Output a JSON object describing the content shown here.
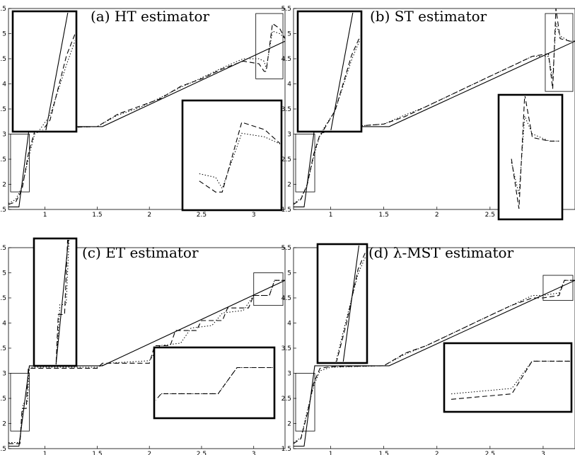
{
  "chart_data": [
    {
      "type": "line",
      "title": "(a) HT estimator",
      "xlim": [
        0.65,
        3.3
      ],
      "ylim": [
        1.5,
        5.5
      ],
      "xticks": [
        "1",
        "1.5",
        "2",
        "2.5",
        "3"
      ],
      "yticks": [
        "1.5",
        "2",
        "2.5",
        "3",
        "3.5",
        "4",
        "4.5",
        "5",
        "5.5"
      ],
      "series": [
        {
          "style": "solid",
          "x": [
            0.65,
            0.75,
            0.85,
            1.55,
            3.3
          ],
          "y": [
            1.55,
            1.55,
            3.15,
            3.15,
            4.85
          ]
        },
        {
          "style": "dashed",
          "x": [
            0.65,
            0.72,
            0.78,
            0.84,
            0.9,
            1.0,
            1.5,
            1.7,
            1.9,
            2.1,
            2.3,
            2.5,
            2.7,
            2.9,
            3.05,
            3.1,
            3.12,
            3.18,
            3.25,
            3.3
          ],
          "y": [
            1.6,
            1.65,
            1.9,
            2.6,
            3.05,
            3.12,
            3.15,
            3.4,
            3.55,
            3.7,
            3.95,
            4.1,
            4.3,
            4.45,
            4.4,
            4.25,
            4.25,
            5.2,
            5.1,
            4.9
          ]
        },
        {
          "style": "dotted",
          "x": [
            0.65,
            0.72,
            0.78,
            0.84,
            0.9,
            1.0,
            1.5,
            1.7,
            1.9,
            2.1,
            2.3,
            2.5,
            2.7,
            2.9,
            3.05,
            3.1,
            3.12,
            3.18,
            3.25,
            3.3
          ],
          "y": [
            1.62,
            1.7,
            1.95,
            2.5,
            3.0,
            3.12,
            3.15,
            3.38,
            3.52,
            3.72,
            3.93,
            4.12,
            4.32,
            4.5,
            4.5,
            4.45,
            4.3,
            5.05,
            5.0,
            4.9
          ]
        }
      ]
    },
    {
      "type": "line",
      "title": "(b) ST estimator",
      "xlim": [
        0.65,
        3.3
      ],
      "ylim": [
        1.5,
        5.5
      ],
      "xticks": [
        "1",
        "1.5",
        "2",
        "2.5",
        "3"
      ],
      "yticks": [
        "1.5",
        "2",
        "2.5",
        "3",
        "3.5",
        "4",
        "4.5",
        "5",
        "5.5"
      ],
      "series": [
        {
          "style": "solid",
          "x": [
            0.65,
            0.75,
            0.85,
            1.55,
            3.3
          ],
          "y": [
            1.55,
            1.55,
            3.15,
            3.15,
            4.85
          ]
        },
        {
          "style": "dashed",
          "x": [
            0.65,
            0.72,
            0.78,
            0.84,
            0.9,
            1.0,
            1.5,
            1.7,
            1.9,
            2.1,
            2.3,
            2.5,
            2.7,
            2.9,
            3.05,
            3.09,
            3.12,
            3.16,
            3.25,
            3.3
          ],
          "y": [
            1.6,
            1.7,
            2.0,
            2.6,
            3.0,
            3.12,
            3.2,
            3.35,
            3.55,
            3.75,
            3.95,
            4.15,
            4.35,
            4.55,
            4.6,
            3.9,
            5.5,
            4.9,
            4.85,
            4.85
          ]
        },
        {
          "style": "dotted",
          "x": [
            0.65,
            0.72,
            0.78,
            0.84,
            0.9,
            1.0,
            1.5,
            1.7,
            1.9,
            2.1,
            2.3,
            2.5,
            2.7,
            2.9,
            3.05,
            3.09,
            3.12,
            3.16,
            3.25,
            3.3
          ],
          "y": [
            1.62,
            1.72,
            2.0,
            2.55,
            2.98,
            3.12,
            3.2,
            3.38,
            3.55,
            3.75,
            3.95,
            4.15,
            4.35,
            4.55,
            4.55,
            4.1,
            5.2,
            4.95,
            4.85,
            4.85
          ]
        }
      ]
    },
    {
      "type": "line",
      "title": "(c) ET estimator",
      "xlim": [
        0.65,
        3.3
      ],
      "ylim": [
        1.5,
        5.5
      ],
      "xticks": [
        "1",
        "1.5",
        "2",
        "2.5",
        "3"
      ],
      "yticks": [
        "1.5",
        "2",
        "2.5",
        "3",
        "3.5",
        "4",
        "4.5",
        "5",
        "5.5"
      ],
      "series": [
        {
          "style": "solid",
          "x": [
            0.65,
            0.75,
            0.85,
            1.55,
            3.3
          ],
          "y": [
            1.55,
            1.55,
            3.15,
            3.15,
            4.85
          ]
        },
        {
          "style": "dashed",
          "x": [
            0.65,
            0.76,
            0.78,
            0.82,
            0.84,
            1.5,
            1.55,
            2.0,
            2.05,
            2.2,
            2.25,
            2.45,
            2.5,
            2.7,
            2.75,
            2.95,
            3.0,
            3.15,
            3.2,
            3.3
          ],
          "y": [
            1.6,
            1.6,
            2.3,
            2.3,
            3.1,
            3.1,
            3.2,
            3.2,
            3.55,
            3.55,
            3.85,
            3.85,
            4.05,
            4.05,
            4.3,
            4.3,
            4.55,
            4.55,
            4.85,
            4.85
          ]
        },
        {
          "style": "dotted",
          "x": [
            0.65,
            0.76,
            0.79,
            0.83,
            0.85,
            1.5,
            1.6,
            2.0,
            2.1,
            2.3,
            2.4,
            2.6,
            2.7,
            2.9,
            3.0,
            3.15,
            3.2,
            3.3
          ],
          "y": [
            1.62,
            1.62,
            2.4,
            2.4,
            3.12,
            3.12,
            3.2,
            3.25,
            3.55,
            3.6,
            3.9,
            3.95,
            4.2,
            4.25,
            4.55,
            4.55,
            4.85,
            4.85
          ]
        }
      ]
    },
    {
      "type": "line",
      "title": "(d) λ-MST estimator",
      "xlim": [
        0.65,
        3.3
      ],
      "ylim": [
        1.5,
        5.5
      ],
      "xticks": [
        "1",
        "1.5",
        "2",
        "2.5",
        "3"
      ],
      "yticks": [
        "1.5",
        "2",
        "2.5",
        "3",
        "3.5",
        "4",
        "4.5",
        "5",
        "5.5"
      ],
      "series": [
        {
          "style": "solid",
          "x": [
            0.65,
            0.75,
            0.85,
            1.55,
            3.3
          ],
          "y": [
            1.55,
            1.55,
            3.15,
            3.15,
            4.85
          ]
        },
        {
          "style": "dashed",
          "x": [
            0.65,
            0.72,
            0.78,
            0.84,
            0.9,
            1.0,
            1.5,
            1.7,
            1.9,
            2.1,
            2.3,
            2.5,
            2.7,
            2.9,
            3.0,
            3.15,
            3.2,
            3.3
          ],
          "y": [
            1.6,
            1.7,
            2.2,
            2.8,
            3.1,
            3.13,
            3.15,
            3.4,
            3.55,
            3.75,
            3.95,
            4.15,
            4.35,
            4.5,
            4.5,
            4.55,
            4.85,
            4.85
          ]
        },
        {
          "style": "dotted",
          "x": [
            0.65,
            0.72,
            0.78,
            0.84,
            0.9,
            1.0,
            1.5,
            1.7,
            1.9,
            2.1,
            2.3,
            2.5,
            2.7,
            2.9,
            3.0,
            3.15,
            3.2,
            3.3
          ],
          "y": [
            1.62,
            1.72,
            2.25,
            2.75,
            3.05,
            3.12,
            3.15,
            3.38,
            3.55,
            3.75,
            3.95,
            4.15,
            4.35,
            4.55,
            4.55,
            4.6,
            4.85,
            4.85
          ]
        }
      ]
    }
  ]
}
